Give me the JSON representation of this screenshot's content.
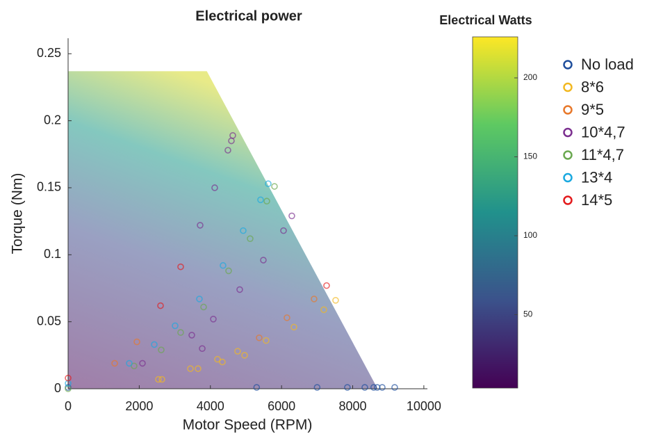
{
  "chart_data": {
    "type": "scatter",
    "title": "Electrical power",
    "xlabel": "Motor Speed (RPM)",
    "ylabel": "Torque (Nm)",
    "xlim": [
      0,
      10100
    ],
    "ylim": [
      0,
      0.26
    ],
    "xticks": [
      0,
      2000,
      4000,
      6000,
      8000,
      10000
    ],
    "yticks": [
      0,
      0.05,
      0.1,
      0.15,
      0.2,
      0.25
    ],
    "envelope": {
      "x": [
        0,
        0,
        3900,
        8700
      ],
      "y": [
        0,
        0.237,
        0.237,
        0
      ]
    },
    "colorbar": {
      "title": "Electrical Watts",
      "clim": [
        3.5,
        226
      ],
      "ticks": [
        50,
        100,
        150,
        200
      ],
      "colors": [
        "#440154",
        "#3b528b",
        "#21918c",
        "#5ec962",
        "#fde725"
      ]
    },
    "series": [
      {
        "name": "No load",
        "color": "#1f4e9c",
        "x": [
          0,
          5300,
          7000,
          7850,
          8340,
          8590,
          8690,
          8830,
          9180
        ],
        "y": [
          0.001,
          0.001,
          0.001,
          0.001,
          0.001,
          0.001,
          0.001,
          0.001,
          0.001
        ]
      },
      {
        "name": "8*6",
        "color": "#f2b820",
        "x": [
          2539,
          2637,
          3438,
          3652,
          4199,
          4336,
          4766,
          4961,
          5566,
          6348,
          7188,
          7520
        ],
        "y": [
          0.007,
          0.007,
          0.015,
          0.015,
          0.022,
          0.02,
          0.028,
          0.025,
          0.036,
          0.046,
          0.059,
          0.066
        ]
      },
      {
        "name": "9*5",
        "color": "#e8782a",
        "x": [
          1309,
          1934,
          6914,
          6152,
          5371
        ],
        "y": [
          0.019,
          0.035,
          0.067,
          0.053,
          0.038
        ]
      },
      {
        "name": "10*4,7",
        "color": "#7b2f8f",
        "x": [
          3770,
          2090,
          3477,
          4082,
          4824,
          5488,
          6055,
          6289,
          4590,
          4629,
          4492,
          4121,
          3711
        ],
        "y": [
          0.03,
          0.019,
          0.04,
          0.052,
          0.074,
          0.096,
          0.118,
          0.129,
          0.185,
          0.189,
          0.178,
          0.15,
          0.122
        ]
      },
      {
        "name": "11*4,7",
        "color": "#6aa84f",
        "x": [
          0,
          1855,
          2617,
          3164,
          3809,
          4512,
          5117,
          5586,
          5801
        ],
        "y": [
          0,
          0.017,
          0.029,
          0.042,
          0.061,
          0.088,
          0.112,
          0.14,
          0.151
        ]
      },
      {
        "name": "13*4",
        "color": "#1aa9e0",
        "x": [
          0,
          1719,
          2422,
          3008,
          3691,
          4355,
          4922,
          5410,
          5625
        ],
        "y": [
          0.004,
          0.019,
          0.033,
          0.047,
          0.067,
          0.092,
          0.118,
          0.141,
          0.153
        ]
      },
      {
        "name": "14*5",
        "color": "#e31a1c",
        "x": [
          0,
          2598,
          7266,
          3164
        ],
        "y": [
          0.008,
          0.062,
          0.077,
          0.091
        ]
      }
    ]
  }
}
